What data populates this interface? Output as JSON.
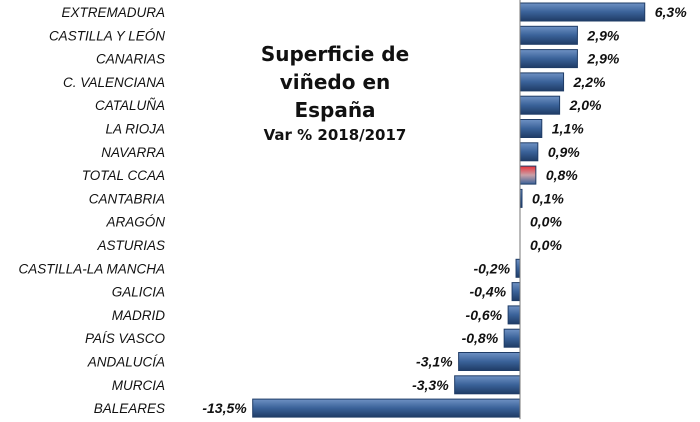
{
  "chart_data": {
    "type": "bar",
    "orientation": "horizontal",
    "title": "Superficie de viñedo en España",
    "title_lines": [
      "Superficie de",
      "viñedo en España"
    ],
    "subtitle": "Var % 2018/2017",
    "xlabel": "",
    "ylabel": "",
    "grid": false,
    "categories": [
      "EXTREMADURA",
      "CASTILLA Y LEÓN",
      "CANARIAS",
      "C. VALENCIANA",
      "CATALUÑA",
      "LA RIOJA",
      "NAVARRA",
      "TOTAL CCAA",
      "CANTABRIA",
      "ARAGÓN",
      "ASTURIAS",
      "CASTILLA-LA MANCHA",
      "GALICIA",
      "MADRID",
      "PAÍS VASCO",
      "ANDALUCÍA",
      "MURCIA",
      "BALEARES"
    ],
    "values": [
      6.3,
      2.9,
      2.9,
      2.2,
      2.0,
      1.1,
      0.9,
      0.8,
      0.1,
      0.0,
      0.0,
      -0.2,
      -0.4,
      -0.6,
      -0.8,
      -3.1,
      -3.3,
      -13.5
    ],
    "labels": [
      "6,3%",
      "2,9%",
      "2,9%",
      "2,2%",
      "2,0%",
      "1,1%",
      "0,9%",
      "0,8%",
      "0,1%",
      "0,0%",
      "0,0%",
      "-0,2%",
      "-0,4%",
      "-0,6%",
      "-0,8%",
      "-3,1%",
      "-3,3%",
      "-13,5%"
    ],
    "highlight": "TOTAL CCAA",
    "xlim": [
      -13.5,
      8.8
    ],
    "colors": {
      "bar": "#3a6299",
      "bar_dark": "#1f3c66",
      "bar_light": "#6f92c4",
      "highlight": "#e8323a"
    }
  }
}
